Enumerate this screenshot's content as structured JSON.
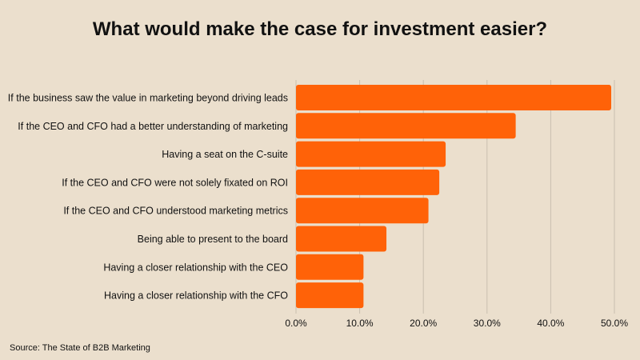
{
  "colors": {
    "bar": "#ff6208",
    "grid": "#c9bfb0",
    "background": "#ebdfcd"
  },
  "source": "Source: The State of B2B Marketing",
  "chart_data": {
    "type": "bar",
    "orientation": "horizontal",
    "title": "What would make the case for investment easier?",
    "xlabel": "",
    "ylabel": "",
    "categories": [
      "If the business saw the value in marketing beyond driving leads",
      "If the CEO and CFO had a better understanding of marketing",
      "Having a seat on the C-suite",
      "If the CEO and CFO were not solely fixated on ROI",
      "If the CEO and CFO understood marketing metrics",
      "Being able to present to the board",
      "Having a closer relationship with the CEO",
      "Having a closer relationship with the CFO"
    ],
    "values": [
      49.5,
      34.5,
      23.5,
      22.5,
      20.8,
      14.2,
      10.6,
      10.6
    ],
    "xlim": [
      0,
      50
    ],
    "ticks": [
      "0.0%",
      "10.0%",
      "20.0%",
      "30.0%",
      "40.0%",
      "50.0%"
    ],
    "tick_values": [
      0,
      10,
      20,
      30,
      40,
      50
    ],
    "grid": "vertical",
    "legend": "none"
  }
}
